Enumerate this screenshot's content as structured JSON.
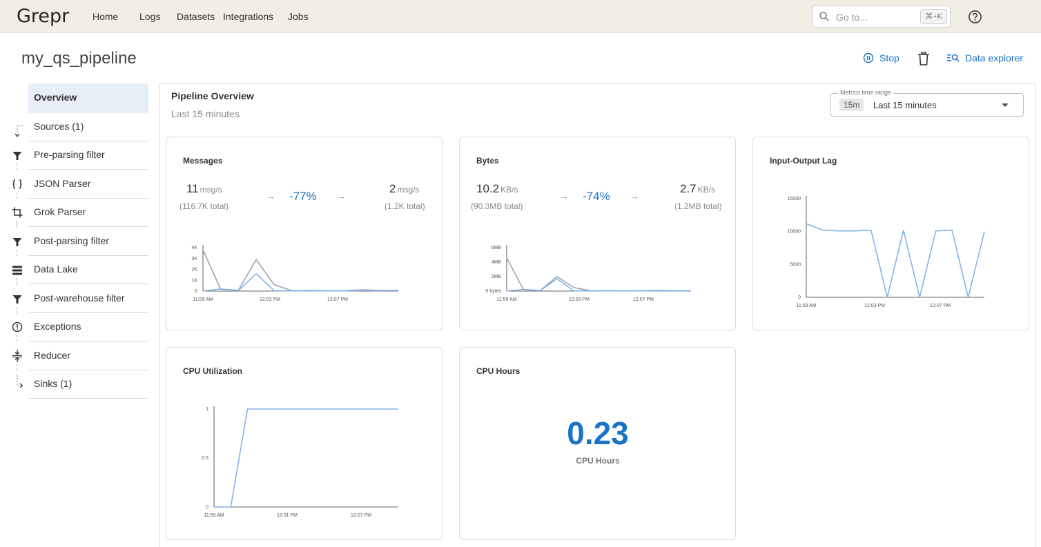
{
  "app": {
    "logo": "Grepr"
  },
  "nav": [
    {
      "label": "Home"
    },
    {
      "label": "Logs"
    },
    {
      "label": "Datasets"
    },
    {
      "label": "Integrations"
    },
    {
      "label": "Jobs"
    }
  ],
  "search": {
    "placeholder": "Go to...",
    "shortcut": "⌘+K"
  },
  "page": {
    "title": "my_qs_pipeline"
  },
  "actions": {
    "stop": "Stop",
    "explorer": "Data explorer"
  },
  "sidebar": {
    "items": [
      {
        "label": "Overview",
        "icon": "none"
      },
      {
        "label": "Sources (1)",
        "icon": "dashed-flow-icon"
      },
      {
        "label": "Pre-parsing filter",
        "icon": "filter-icon"
      },
      {
        "label": "JSON Parser",
        "icon": "braces-icon"
      },
      {
        "label": "Grok Parser",
        "icon": "crop-icon"
      },
      {
        "label": "Post-parsing filter",
        "icon": "filter-icon"
      },
      {
        "label": "Data Lake",
        "icon": "storage-icon"
      },
      {
        "label": "Post-warehouse filter",
        "icon": "filter-icon"
      },
      {
        "label": "Exceptions",
        "icon": "alert-circle-icon"
      },
      {
        "label": "Reducer",
        "icon": "compress-icon"
      },
      {
        "label": "Sinks (1)",
        "icon": "dashed-flow-icon"
      }
    ]
  },
  "overview": {
    "title": "Pipeline Overview",
    "subtitle": "Last 15 minutes",
    "range": {
      "legend": "Metrics time range",
      "chip": "15m",
      "value": "Last 15 minutes"
    }
  },
  "cards": {
    "messages": {
      "title": "Messages",
      "in_value": "11",
      "in_unit": "msg/s",
      "in_total": "(116.7K total)",
      "pct": "-77%",
      "out_value": "2",
      "out_unit": "msg/s",
      "out_total": "(1.2K total)",
      "arrow": "→"
    },
    "bytes": {
      "title": "Bytes",
      "in_value": "10.2",
      "in_unit": "KB/s",
      "in_total": "(90.3MB total)",
      "pct": "-74%",
      "out_value": "2.7",
      "out_unit": "KB/s",
      "out_total": "(1.2MB total)",
      "arrow": "→"
    },
    "lag": {
      "title": "Input-Output Lag"
    },
    "cpu": {
      "title": "CPU Utilization"
    },
    "cpuh": {
      "title": "CPU Hours",
      "value": "0.23",
      "label": "CPU Hours"
    }
  },
  "colors": {
    "accent": "#1a73c7",
    "series_in": "#9aa2b3",
    "series_out": "#86b2ea"
  },
  "chart_data": [
    {
      "type": "line",
      "title": "Messages",
      "x": [
        "11:59 AM",
        "",
        "",
        "",
        "12:03 PM",
        "",
        "",
        "",
        "12:07 PM",
        "",
        "",
        ""
      ],
      "xticks": [
        "11:59 AM",
        "12:03 PM",
        "12:07 PM"
      ],
      "yticks": [
        "0",
        "1K",
        "2K",
        "3K",
        "4K"
      ],
      "ylim": [
        0,
        4000
      ],
      "series": [
        {
          "values": [
            3800,
            150,
            80,
            2900,
            600,
            40,
            50,
            30,
            40,
            120,
            60,
            80
          ]
        },
        {
          "values": [
            0,
            200,
            60,
            1600,
            40,
            20,
            30,
            20,
            30,
            60,
            40,
            50
          ]
        }
      ]
    },
    {
      "type": "line",
      "title": "Bytes",
      "x": [
        "11:59 AM",
        "",
        "",
        "",
        "12:03 PM",
        "",
        "",
        "",
        "12:07 PM",
        "",
        "",
        ""
      ],
      "xticks": [
        "11:59 AM",
        "12:03 PM",
        "12:07 PM"
      ],
      "yticks": [
        "0 bytes",
        "2MB",
        "4MB",
        "6MB"
      ],
      "ylim": [
        0,
        6000000
      ],
      "series": [
        {
          "values": [
            4600000,
            200000,
            80000,
            2000000,
            500000,
            40000,
            50000,
            30000,
            40000,
            90000,
            60000,
            70000
          ]
        },
        {
          "values": [
            0,
            250000,
            60000,
            1700000,
            40000,
            20000,
            30000,
            20000,
            30000,
            50000,
            40000,
            50000
          ]
        }
      ]
    },
    {
      "type": "line",
      "title": "Input-Output Lag",
      "x": [
        "11:59 AM",
        "",
        "",
        "",
        "12:03 PM",
        "",
        "",
        "",
        "12:07 PM",
        "",
        "",
        ""
      ],
      "xticks": [
        "11:59 AM",
        "12:03 PM",
        "12:07 PM"
      ],
      "yticks": [
        "0",
        "5000",
        "10000",
        "15000"
      ],
      "ylim": [
        0,
        15000
      ],
      "series": [
        {
          "values": [
            11200,
            10200,
            10100,
            10100,
            10200,
            0,
            10200,
            0,
            10100,
            10200,
            0,
            10000
          ]
        }
      ]
    },
    {
      "type": "line",
      "title": "CPU Utilization",
      "x": [
        "11:55 AM",
        "",
        "",
        "",
        "12:01 PM",
        "",
        "",
        "",
        "12:07 PM",
        "",
        "",
        ""
      ],
      "xticks": [
        "11:55 AM",
        "12:01 PM",
        "12:07 PM"
      ],
      "yticks": [
        "0",
        "0.5",
        "1"
      ],
      "ylim": [
        0,
        1
      ],
      "series": [
        {
          "values": [
            0,
            0,
            1,
            1,
            1,
            1,
            1,
            1,
            1,
            1,
            1,
            1
          ]
        }
      ]
    }
  ]
}
